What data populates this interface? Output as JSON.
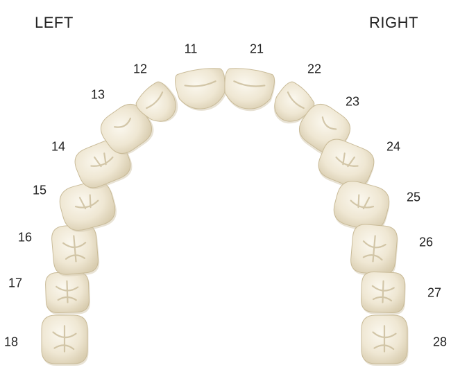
{
  "labels": {
    "left": "LEFT",
    "right": "RIGHT"
  },
  "colors": {
    "tooth_light": "#fbf8ef",
    "tooth_mid": "#efe7d3",
    "tooth_dark": "#d9cdb0",
    "tooth_outline": "#c9bb98",
    "groove": "#c5b793"
  },
  "teeth": [
    {
      "number": "18",
      "type": "molar"
    },
    {
      "number": "17",
      "type": "molar"
    },
    {
      "number": "16",
      "type": "molar"
    },
    {
      "number": "15",
      "type": "premolar"
    },
    {
      "number": "14",
      "type": "premolar"
    },
    {
      "number": "13",
      "type": "canine"
    },
    {
      "number": "12",
      "type": "incisor"
    },
    {
      "number": "11",
      "type": "incisor"
    },
    {
      "number": "21",
      "type": "incisor"
    },
    {
      "number": "22",
      "type": "incisor"
    },
    {
      "number": "23",
      "type": "canine"
    },
    {
      "number": "24",
      "type": "premolar"
    },
    {
      "number": "25",
      "type": "premolar"
    },
    {
      "number": "26",
      "type": "molar"
    },
    {
      "number": "27",
      "type": "molar"
    },
    {
      "number": "28",
      "type": "molar"
    }
  ]
}
